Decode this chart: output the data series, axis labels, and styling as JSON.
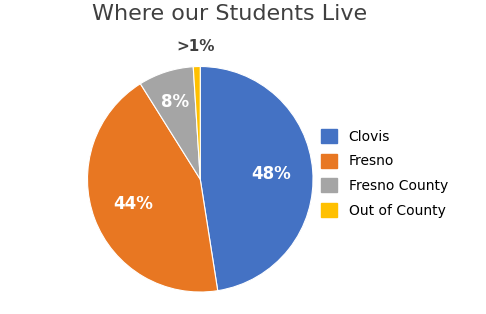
{
  "title": "Where our Students Live",
  "title_fontsize": 16,
  "title_fontweight": "normal",
  "title_color": "#404040",
  "labels": [
    "Clovis",
    "Fresno",
    "Fresno County",
    "Out of County"
  ],
  "values": [
    48,
    44,
    8,
    1
  ],
  "colors": [
    "#4472C4",
    "#E87722",
    "#A5A5A5",
    "#FFC000"
  ],
  "slice_labels": [
    "48%",
    "44%",
    "8%",
    ">1%"
  ],
  "slice_label_colors": [
    "white",
    "white",
    "white",
    "#404040"
  ],
  "label_fontsize": 12,
  "legend_fontsize": 10,
  "startangle": 90,
  "background_color": "#ffffff"
}
